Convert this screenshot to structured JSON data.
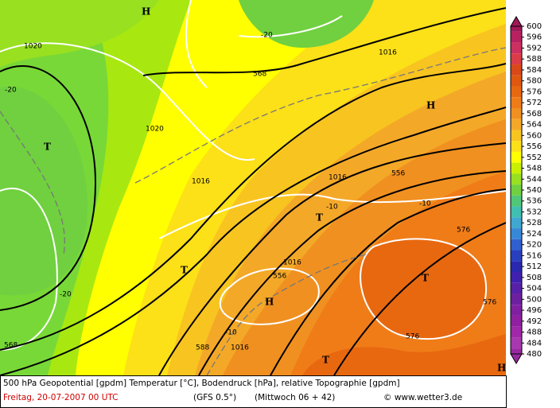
{
  "map": {
    "labels": [
      "H",
      "H",
      "H",
      "H",
      "T",
      "T",
      "T",
      "T",
      "T",
      "1020",
      "1020",
      "1016",
      "1016",
      "1016",
      "1016",
      "1016",
      "-20",
      "-20",
      "-20",
      "-10",
      "-10",
      "-10",
      "568",
      "568",
      "556",
      "556",
      "576",
      "576",
      "576",
      "588"
    ],
    "colorbar": {
      "levels": [
        {
          "value": 600,
          "color": "#a01858"
        },
        {
          "value": 596,
          "color": "#b82060"
        },
        {
          "value": 592,
          "color": "#cc3060"
        },
        {
          "value": 588,
          "color": "#dc3c48"
        },
        {
          "value": 584,
          "color": "#d84818"
        },
        {
          "value": 580,
          "color": "#e05810"
        },
        {
          "value": 576,
          "color": "#e86810"
        },
        {
          "value": 572,
          "color": "#f07c18"
        },
        {
          "value": 568,
          "color": "#f09020"
        },
        {
          "value": 564,
          "color": "#f4a828"
        },
        {
          "value": 560,
          "color": "#f8c420"
        },
        {
          "value": 556,
          "color": "#fce018"
        },
        {
          "value": 552,
          "color": "#ffff00"
        },
        {
          "value": 548,
          "color": "#c8f000"
        },
        {
          "value": 544,
          "color": "#98e020"
        },
        {
          "value": 540,
          "color": "#70d040"
        },
        {
          "value": 536,
          "color": "#50c878"
        },
        {
          "value": 532,
          "color": "#40c0b0"
        },
        {
          "value": 528,
          "color": "#40a8d0"
        },
        {
          "value": 524,
          "color": "#3888d8"
        },
        {
          "value": 520,
          "color": "#3060d0"
        },
        {
          "value": 516,
          "color": "#2840c0"
        },
        {
          "value": 512,
          "color": "#2828b0"
        },
        {
          "value": 508,
          "color": "#4020b0"
        },
        {
          "value": 504,
          "color": "#5820a8"
        },
        {
          "value": 500,
          "color": "#6c20a0"
        },
        {
          "value": 496,
          "color": "#8020a0"
        },
        {
          "value": 492,
          "color": "#9020a0"
        },
        {
          "value": 488,
          "color": "#a028a8"
        },
        {
          "value": 484,
          "color": "#a838b0"
        },
        {
          "value": 480,
          "color": "#9828a0"
        }
      ]
    },
    "footer": {
      "line1": "500 hPa Geopotential [gpdm] Temperatur [°C], Bodendruck [hPa], relative Topographie [gpdm]",
      "date": "Freitag, 20-07-2007  00 UTC",
      "model": "(GFS 0.5°)",
      "run": "(Mittwoch 06 + 42)",
      "credit": "© www.wetter3.de"
    }
  }
}
